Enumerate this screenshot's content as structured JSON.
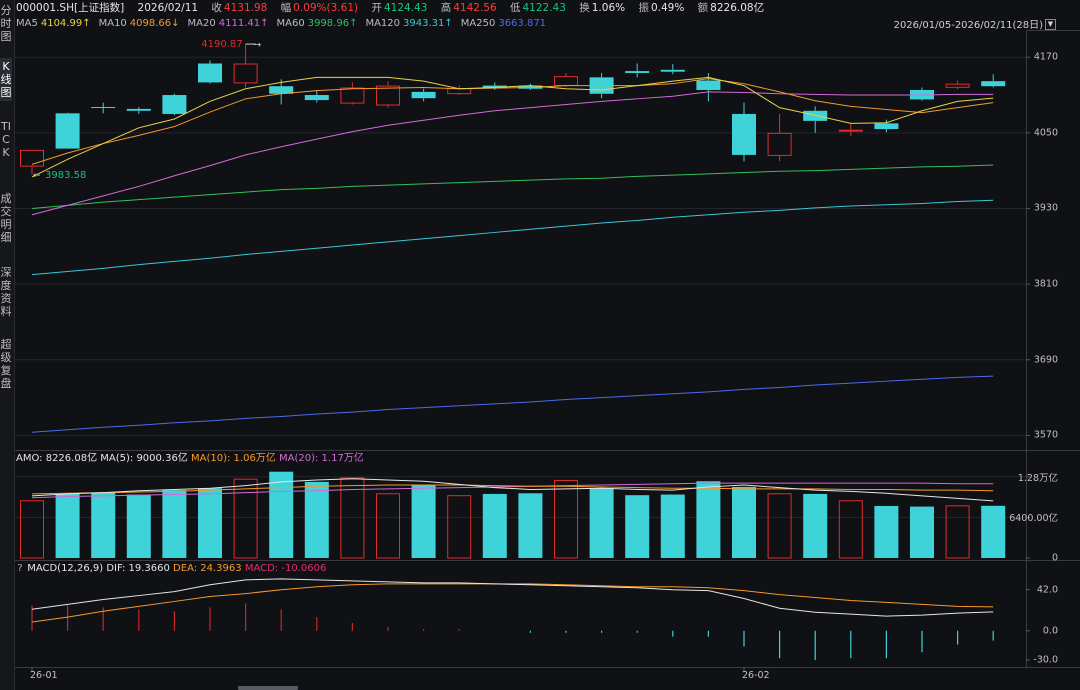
{
  "sidebar": {
    "tabs": [
      {
        "label": "分时图",
        "active": false
      },
      {
        "label": "K线图",
        "active": true
      },
      {
        "label": "TICK",
        "active": false
      },
      {
        "label": "成交明细",
        "active": false
      },
      {
        "label": "深度资料",
        "active": false
      },
      {
        "label": "超级复盘",
        "active": false
      }
    ]
  },
  "header": {
    "symbol": "000001.SH[上证指数]",
    "date": "2026/02/11",
    "close_label": "收",
    "close": "4131.98",
    "amp_label": "幅",
    "amp": "0.09%(3.61)",
    "open_label": "开",
    "open": "4124.43",
    "high_label": "高",
    "high": "4142.56",
    "low_label": "低",
    "low": "4122.43",
    "turnover_label": "换",
    "turnover": "1.06%",
    "swing_label": "振",
    "swing": "0.49%",
    "amount_label": "额",
    "amount": "8226.08亿"
  },
  "ma_bar": {
    "items": [
      {
        "name": "MA5",
        "value": "4104.99",
        "arrow": "↑",
        "color": "#e8d24a"
      },
      {
        "name": "MA10",
        "value": "4098.66",
        "arrow": "↓",
        "color": "#f59a2b"
      },
      {
        "name": "MA20",
        "value": "4111.41",
        "arrow": "↑",
        "color": "#d26bd8"
      },
      {
        "name": "MA60",
        "value": "3998.96",
        "arrow": "↑",
        "color": "#2fc15b"
      },
      {
        "name": "MA120",
        "value": "3943.31",
        "arrow": "↑",
        "color": "#39c6d6"
      },
      {
        "name": "MA250",
        "value": "3663.871",
        "arrow": "",
        "color": "#4c6be8"
      }
    ]
  },
  "range": {
    "label": "2026/01/05-2026/02/11(28日)"
  },
  "amo_bar": {
    "amo": "AMO: 8226.08亿",
    "ma5": "MA(5): 9000.36亿",
    "ma10": "MA(10): 1.06万亿",
    "ma20": "MA(20): 1.17万亿"
  },
  "macd_bar": {
    "help": "?",
    "name": "MACD(12,26,9)",
    "dif": "DIF: 19.3660",
    "dea": "DEA: 24.3963",
    "macd": "MACD: -10.0606"
  },
  "colors": {
    "up": "#e02c2c",
    "down": "#3ed3d8",
    "ma5": "#e8d24a",
    "ma10": "#f59a2b",
    "ma20": "#d26bd8",
    "ma60": "#2fc15b",
    "ma120": "#39c6d6",
    "ma250": "#4c6be8",
    "dif": "#e6e6e6",
    "dea": "#f59a2b"
  },
  "chart_data": [
    {
      "type": "candlestick",
      "x": [
        "2026-01-05",
        "2026-01-06",
        "2026-01-07",
        "2026-01-08",
        "2026-01-09",
        "2026-01-12",
        "2026-01-13",
        "2026-01-14",
        "2026-01-15",
        "2026-01-16",
        "2026-01-19",
        "2026-01-20",
        "2026-01-21",
        "2026-01-22",
        "2026-01-23",
        "2026-01-26",
        "2026-01-27",
        "2026-01-28",
        "2026-01-29",
        "2026-01-30",
        "2026-02-02",
        "2026-02-03",
        "2026-02-04",
        "2026-02-05",
        "2026-02-06",
        "2026-02-09",
        "2026-02-10",
        "2026-02-11"
      ],
      "ohlc": [
        [
          3998,
          4023,
          3984,
          4024
        ],
        [
          4081,
          4025,
          4025,
          4082
        ],
        [
          4091,
          4090,
          4081,
          4098
        ],
        [
          4088,
          4085,
          4080,
          4091
        ],
        [
          4110,
          4080,
          4078,
          4112
        ],
        [
          4160,
          4130,
          4128,
          4165
        ],
        [
          4130,
          4160,
          4122,
          4191
        ],
        [
          4124,
          4112,
          4095,
          4135
        ],
        [
          4110,
          4102,
          4098,
          4118
        ],
        [
          4098,
          4122,
          4095,
          4130
        ],
        [
          4095,
          4125,
          4090,
          4132
        ],
        [
          4115,
          4105,
          4100,
          4120
        ],
        [
          4113,
          4121,
          4110,
          4125
        ],
        [
          4125,
          4122,
          4118,
          4130
        ],
        [
          4125,
          4120,
          4118,
          4128
        ],
        [
          4126,
          4140,
          4123,
          4145
        ],
        [
          4138,
          4112,
          4105,
          4145
        ],
        [
          4148,
          4145,
          4138,
          4160
        ],
        [
          4150,
          4147,
          4143,
          4159
        ],
        [
          4133,
          4118,
          4100,
          4145
        ],
        [
          4080,
          4015,
          4005,
          4098
        ],
        [
          4015,
          4050,
          4005,
          4080
        ],
        [
          4085,
          4069,
          4050,
          4092
        ],
        [
          4055,
          4055,
          4045,
          4065
        ],
        [
          4065,
          4056,
          4051,
          4071
        ],
        [
          4118,
          4103,
          4101,
          4122
        ],
        [
          4123,
          4128,
          4119,
          4133
        ],
        [
          4132,
          4124,
          4122,
          4143
        ]
      ],
      "ma5": [
        3980,
        4008,
        4033,
        4058,
        4072,
        4100,
        4120,
        4130,
        4138,
        4138,
        4138,
        4132,
        4120,
        4122,
        4125,
        4120,
        4118,
        4125,
        4132,
        4138,
        4125,
        4090,
        4078,
        4065,
        4066,
        4085,
        4100,
        4105
      ],
      "ma10": [
        4000,
        4018,
        4033,
        4046,
        4060,
        4083,
        4104,
        4112,
        4117,
        4120,
        4121,
        4122,
        4120,
        4121,
        4122,
        4125,
        4125,
        4125,
        4128,
        4136,
        4128,
        4115,
        4101,
        4092,
        4087,
        4082,
        4090,
        4098
      ],
      "ma20": [
        3920,
        3935,
        3950,
        3965,
        3982,
        3998,
        4015,
        4028,
        4040,
        4052,
        4062,
        4070,
        4078,
        4085,
        4090,
        4095,
        4100,
        4104,
        4108,
        4115,
        4114,
        4112,
        4111,
        4110,
        4110,
        4110,
        4111,
        4111
      ],
      "ma60": [
        3930,
        3935,
        3940,
        3944,
        3948,
        3952,
        3956,
        3960,
        3962,
        3965,
        3967,
        3969,
        3971,
        3973,
        3975,
        3977,
        3978,
        3981,
        3983,
        3985,
        3987,
        3989,
        3990,
        3992,
        3994,
        3996,
        3997,
        3999
      ],
      "ma120": [
        3825,
        3830,
        3835,
        3841,
        3846,
        3851,
        3857,
        3862,
        3867,
        3872,
        3877,
        3882,
        3887,
        3892,
        3897,
        3902,
        3907,
        3911,
        3916,
        3920,
        3924,
        3927,
        3931,
        3934,
        3936,
        3938,
        3941,
        3943
      ],
      "ma250": [
        3575,
        3579,
        3583,
        3586,
        3590,
        3593,
        3597,
        3600,
        3604,
        3607,
        3611,
        3614,
        3617,
        3620,
        3623,
        3627,
        3630,
        3633,
        3636,
        3639,
        3643,
        3646,
        3650,
        3653,
        3656,
        3659,
        3662,
        3664
      ],
      "ylim": [
        3550,
        4210
      ],
      "yticks": [
        4170,
        4050,
        3930,
        3810,
        3690,
        3570
      ],
      "annotations": [
        {
          "text": "4190.87",
          "index": 6,
          "value": 4190.87
        },
        {
          "text": "3983.58",
          "index": 0,
          "value": 3983.58
        }
      ]
    },
    {
      "type": "bar",
      "name": "AMO",
      "values": [
        9100,
        10100,
        10300,
        10000,
        10700,
        11000,
        12500,
        13600,
        12000,
        12700,
        10200,
        11500,
        9900,
        10100,
        10200,
        12300,
        11000,
        9900,
        10000,
        12100,
        11200,
        10200,
        10100,
        9100,
        8200,
        8100,
        8300,
        8226
      ],
      "ma5": [
        9800,
        10100,
        10300,
        10600,
        10800,
        11000,
        11400,
        12000,
        12300,
        12500,
        12300,
        12100,
        11600,
        11100,
        10800,
        10900,
        11000,
        10800,
        10700,
        11200,
        11500,
        11100,
        10700,
        10500,
        10200,
        9800,
        9400,
        9000
      ],
      "ma10": [
        10100,
        10200,
        10300,
        10400,
        10500,
        10700,
        10900,
        11100,
        11300,
        11400,
        11500,
        11500,
        11500,
        11400,
        11300,
        11300,
        11200,
        11100,
        11000,
        11000,
        10900,
        10900,
        10900,
        10800,
        10800,
        10700,
        10700,
        10600
      ],
      "ma20": [
        9500,
        9700,
        9800,
        9900,
        10000,
        10100,
        10300,
        10500,
        10600,
        10800,
        10900,
        11000,
        11100,
        11200,
        11300,
        11400,
        11500,
        11600,
        11700,
        11800,
        11800,
        11800,
        11800,
        11800,
        11800,
        11800,
        11700,
        11700
      ],
      "ylim": [
        0,
        14500
      ],
      "yticks_labels": [
        "1.28万亿",
        "6400.00亿",
        "0"
      ],
      "yticks_values": [
        12800,
        6400,
        0
      ]
    },
    {
      "type": "line",
      "name": "MACD(12,26,9)",
      "dif": [
        22,
        27,
        32,
        36,
        40,
        47,
        52,
        53,
        52,
        51,
        50,
        49,
        49,
        48,
        47,
        46,
        45,
        44,
        42,
        41,
        33,
        23,
        19,
        17,
        15,
        16,
        18,
        19.366
      ],
      "dea": [
        9,
        14,
        20,
        25,
        30,
        35,
        38,
        42,
        45,
        47,
        48,
        48,
        48,
        48,
        48,
        47,
        46,
        45,
        45,
        44,
        41,
        37,
        34,
        31,
        29,
        27,
        25,
        24.3963
      ],
      "macd": [
        26,
        26,
        24,
        22,
        20,
        24,
        28,
        22,
        14,
        8,
        4,
        2,
        2,
        0,
        -2,
        -2,
        -2,
        -2,
        -6,
        -6,
        -16,
        -28,
        -30,
        -28,
        -28,
        -22,
        -14,
        -10.0606
      ],
      "ylim": [
        -36,
        56
      ],
      "yticks": [
        42.0,
        0.0,
        -30.0
      ],
      "yticks_labels": [
        "42.0",
        "0.0",
        "-30.0"
      ]
    }
  ],
  "x_axis": {
    "labels": [
      {
        "text": "26-01",
        "index": 0
      },
      {
        "text": "26-02",
        "index": 20
      }
    ]
  }
}
